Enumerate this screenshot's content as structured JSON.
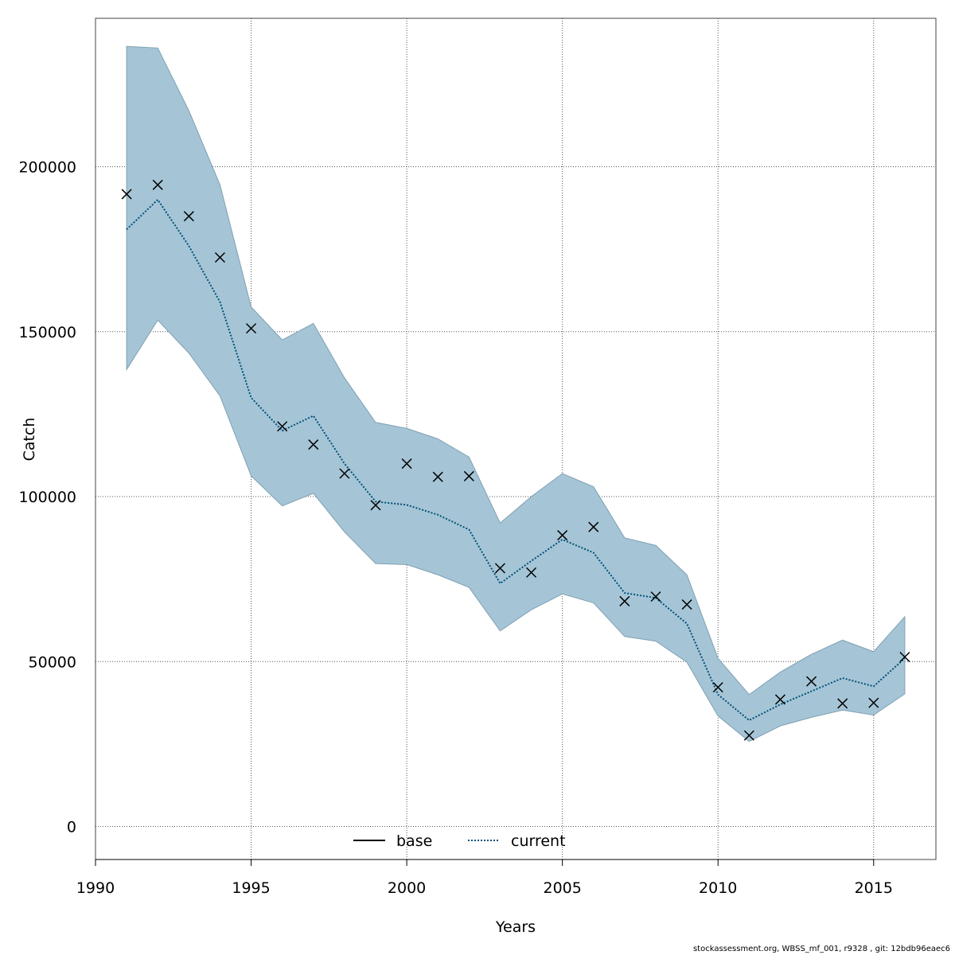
{
  "chart_data": {
    "type": "line",
    "title": "",
    "xlabel": "Years",
    "ylabel": "Catch",
    "xlim": [
      1990,
      2017
    ],
    "ylim": [
      -10000,
      245000
    ],
    "x_ticks": [
      1990,
      1995,
      2000,
      2005,
      2010,
      2015
    ],
    "x_tick_labels": [
      "1990",
      "1995",
      "2000",
      "2005",
      "2010",
      "2015"
    ],
    "y_ticks": [
      0,
      50000,
      100000,
      150000,
      200000
    ],
    "y_tick_labels": [
      "0",
      "50000",
      "100000",
      "150000",
      "200000"
    ],
    "grid": true,
    "legend_position": "bottom-center",
    "legend": [
      {
        "label": "base",
        "style": "solid",
        "color": "#000000"
      },
      {
        "label": "current",
        "style": "dotted",
        "color": "#00507A"
      }
    ],
    "x": [
      1991,
      1992,
      1993,
      1994,
      1995,
      1996,
      1997,
      1998,
      1999,
      2000,
      2001,
      2002,
      2003,
      2004,
      2005,
      2006,
      2007,
      2008,
      2009,
      2010,
      2011,
      2012,
      2013,
      2014,
      2015,
      2016
    ],
    "series": [
      {
        "name": "current",
        "style": "dotted",
        "values": [
          181000,
          190000,
          176000,
          159000,
          130000,
          120000,
          124500,
          110000,
          98500,
          97500,
          94500,
          90000,
          73700,
          80500,
          87000,
          83000,
          70800,
          69300,
          61500,
          40000,
          32200,
          37000,
          41000,
          45000,
          42500,
          51000
        ]
      },
      {
        "name": "observed",
        "marker": "x",
        "values": [
          191700,
          194500,
          185000,
          172500,
          151000,
          121300,
          115800,
          107000,
          97400,
          110000,
          106000,
          106200,
          78300,
          77000,
          88300,
          90800,
          68300,
          69700,
          67300,
          42200,
          27600,
          38500,
          44000,
          37300,
          37500,
          51400
        ]
      },
      {
        "name": "ci_upper",
        "values": [
          236500,
          236000,
          217000,
          194500,
          157500,
          147500,
          152500,
          136000,
          122500,
          120700,
          117500,
          112000,
          92000,
          100000,
          107000,
          103000,
          87500,
          85200,
          76300,
          51000,
          40000,
          46800,
          52200,
          56500,
          53000,
          63600
        ]
      },
      {
        "name": "ci_lower",
        "values": [
          138500,
          153500,
          143500,
          130500,
          106300,
          97200,
          101000,
          89300,
          79700,
          79400,
          76300,
          72500,
          59300,
          65700,
          70500,
          67800,
          57600,
          56200,
          49800,
          33500,
          25800,
          30500,
          33100,
          35300,
          33800,
          40200
        ]
      }
    ],
    "colors": {
      "band_fill": "#A5C5D6",
      "band_stroke": "#7FA0B2",
      "current_line": "#00507A",
      "marker": "#000000",
      "grid": "#555555"
    }
  },
  "footer": "stockassessment.org, WBSS_mf_001, r9328 , git: 12bdb96eaec6"
}
